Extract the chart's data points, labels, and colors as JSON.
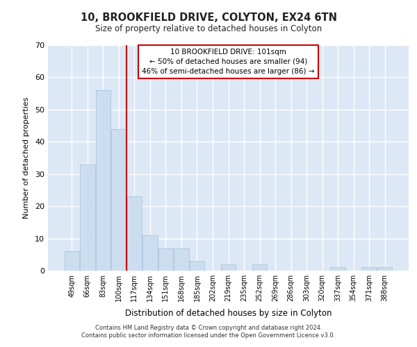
{
  "title": "10, BROOKFIELD DRIVE, COLYTON, EX24 6TN",
  "subtitle": "Size of property relative to detached houses in Colyton",
  "xlabel": "Distribution of detached houses by size in Colyton",
  "ylabel": "Number of detached properties",
  "categories": [
    "49sqm",
    "66sqm",
    "83sqm",
    "100sqm",
    "117sqm",
    "134sqm",
    "151sqm",
    "168sqm",
    "185sqm",
    "202sqm",
    "219sqm",
    "235sqm",
    "252sqm",
    "269sqm",
    "286sqm",
    "303sqm",
    "320sqm",
    "337sqm",
    "354sqm",
    "371sqm",
    "388sqm"
  ],
  "values": [
    6,
    33,
    56,
    44,
    23,
    11,
    7,
    7,
    3,
    0,
    2,
    0,
    2,
    0,
    0,
    0,
    0,
    1,
    0,
    1,
    1
  ],
  "bar_color": "#ccddf0",
  "bar_edge_color": "#aac5e0",
  "ref_line_x": 3.5,
  "ref_line_color": "#cc0000",
  "annotation_line1": "10 BROOKFIELD DRIVE: 101sqm",
  "annotation_line2": "← 50% of detached houses are smaller (94)",
  "annotation_line3": "46% of semi-detached houses are larger (86) →",
  "annotation_box_color": "#ffffff",
  "annotation_box_edge": "#cc0000",
  "ylim": [
    0,
    70
  ],
  "yticks": [
    0,
    10,
    20,
    30,
    40,
    50,
    60,
    70
  ],
  "bg_color": "#dce8f5",
  "grid_color": "#ffffff",
  "footer1": "Contains HM Land Registry data © Crown copyright and database right 2024.",
  "footer2": "Contains public sector information licensed under the Open Government Licence v3.0."
}
